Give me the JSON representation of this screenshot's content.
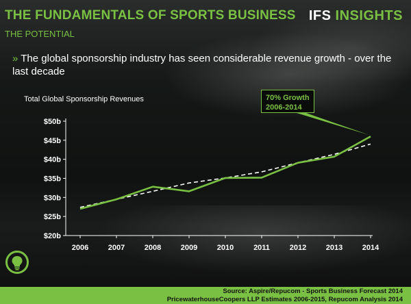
{
  "header": {
    "title": "THE FUNDAMENTALS OF SPORTS BUSINESS",
    "subtitle": "THE POTENTIAL",
    "brand_main": "IFS",
    "brand_accent": "INSIGHTS"
  },
  "bullet": {
    "marker": "»",
    "text": "The global sponsorship industry has seen considerable revenue growth - over the last decade"
  },
  "callout": {
    "line1": "70% Growth",
    "line2": "2006-2014"
  },
  "footer": {
    "source_line1": "Source: Aspire/Repucom - Sports Business Forecast 2014",
    "source_line2": "PricewaterhouseCoopers LLP Estimates 2006-2015, Repucom Analysis 2014"
  },
  "colors": {
    "accent": "#7ac143",
    "trend": "#ffffff",
    "text": "#ffffff"
  },
  "icons": {
    "bulb": "lightbulb-icon"
  },
  "chart_data": {
    "type": "line",
    "title": "Total Global Sponsorship Revenues",
    "x": [
      "2006",
      "2007",
      "2008",
      "2009",
      "2010",
      "2011",
      "2012",
      "2013",
      "2014"
    ],
    "y_ticks": [
      "$20b",
      "$25b",
      "$30b",
      "$35b",
      "$40b",
      "$45b",
      "$50b"
    ],
    "ylim": [
      20,
      50
    ],
    "series": [
      {
        "values": [
          27.0,
          29.5,
          32.8,
          31.6,
          35.1,
          35.2,
          39.1,
          40.7,
          46.0
        ],
        "color": "#7ac143"
      },
      {
        "values": [
          27.4,
          29.5,
          31.6,
          33.8,
          35.1,
          36.7,
          39.1,
          41.3,
          44.0
        ],
        "color": "#ffffff",
        "style": "dashed"
      }
    ],
    "grid": false,
    "legend": "none"
  }
}
